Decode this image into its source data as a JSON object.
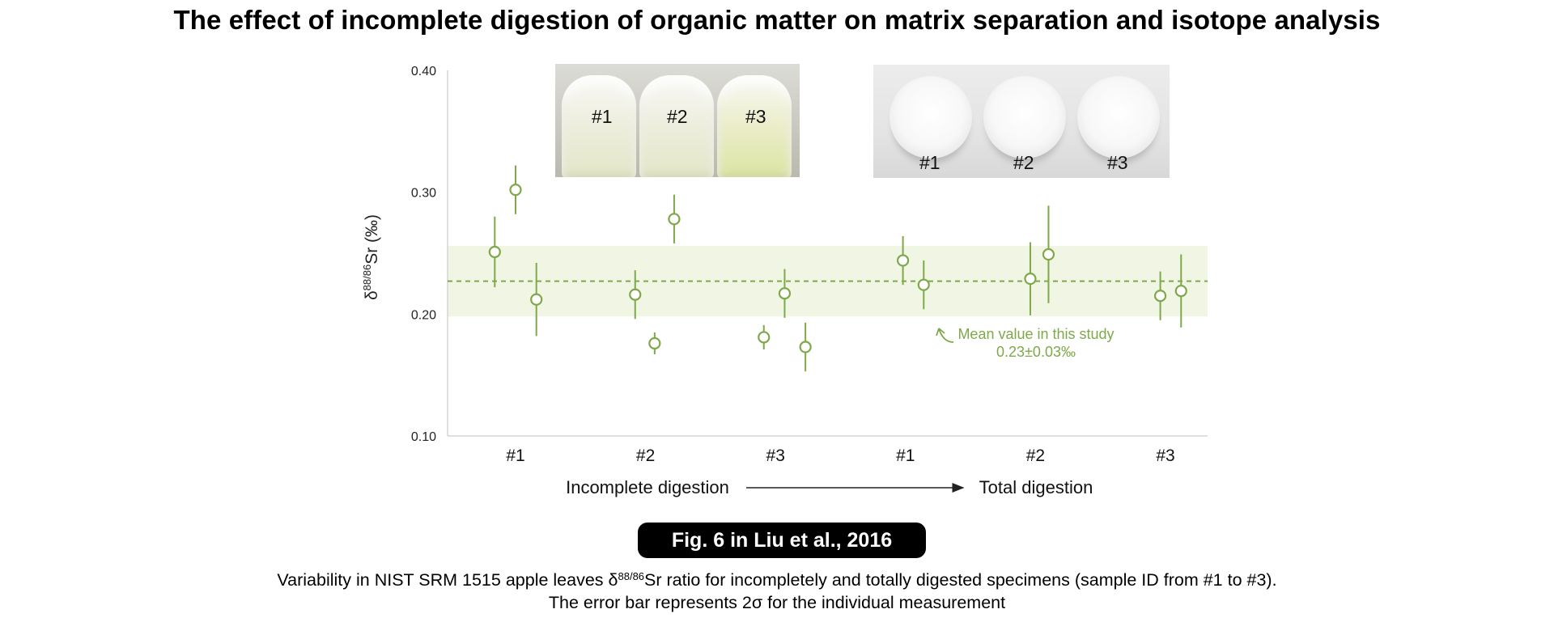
{
  "title": "The effect of incomplete digestion of organic matter on matrix separation and isotope analysis",
  "chart_data": {
    "type": "scatter",
    "ylabel_prefix": "δ",
    "ylabel_sup": "88/86",
    "ylabel_suffix": "Sr (‰)",
    "ylim": [
      0.1,
      0.4
    ],
    "yticks": [
      "0.10",
      "0.20",
      "0.30",
      "0.40"
    ],
    "categories": [
      "#1",
      "#2",
      "#3",
      "#1",
      "#2",
      "#3"
    ],
    "group_labels": [
      "Incomplete digestion",
      "Total digestion"
    ],
    "mean": 0.227,
    "mean_band": [
      0.198,
      0.256
    ],
    "mean_annotation_line1": "Mean value in this study",
    "mean_annotation_line2": "0.23±0.03‰",
    "points": [
      {
        "x": 0.84,
        "y": 0.251,
        "err": 0.029
      },
      {
        "x": 1.0,
        "y": 0.302,
        "err": 0.02
      },
      {
        "x": 1.16,
        "y": 0.212,
        "err": 0.03
      },
      {
        "x": 1.92,
        "y": 0.216,
        "err": 0.02
      },
      {
        "x": 2.07,
        "y": 0.176,
        "err": 0.009
      },
      {
        "x": 2.22,
        "y": 0.278,
        "err": 0.02
      },
      {
        "x": 2.91,
        "y": 0.181,
        "err": 0.01
      },
      {
        "x": 3.07,
        "y": 0.217,
        "err": 0.02
      },
      {
        "x": 3.23,
        "y": 0.173,
        "err": 0.02
      },
      {
        "x": 3.98,
        "y": 0.244,
        "err": 0.02
      },
      {
        "x": 4.14,
        "y": 0.224,
        "err": 0.02
      },
      {
        "x": 4.96,
        "y": 0.229,
        "err": 0.03
      },
      {
        "x": 5.1,
        "y": 0.249,
        "err": 0.04
      },
      {
        "x": 5.96,
        "y": 0.215,
        "err": 0.02
      },
      {
        "x": 6.12,
        "y": 0.219,
        "err": 0.03
      }
    ],
    "colors": {
      "points": "#7fa84a",
      "band": "#f1f6e4",
      "axis": "#cccccc"
    }
  },
  "photos": {
    "incomplete_labels": [
      "#1",
      "#2",
      "#3"
    ],
    "total_labels": [
      "#1",
      "#2",
      "#3"
    ]
  },
  "badge": "Fig. 6 in Liu et al., 2016",
  "caption": {
    "line1_pre": "Variability in NIST SRM 1515 apple leaves δ",
    "line1_sup": "88/86",
    "line1_post": "Sr ratio for incompletely and totally digested specimens (sample ID from #1 to #3).",
    "line2": "The error bar represents 2σ for the individual measurement"
  }
}
